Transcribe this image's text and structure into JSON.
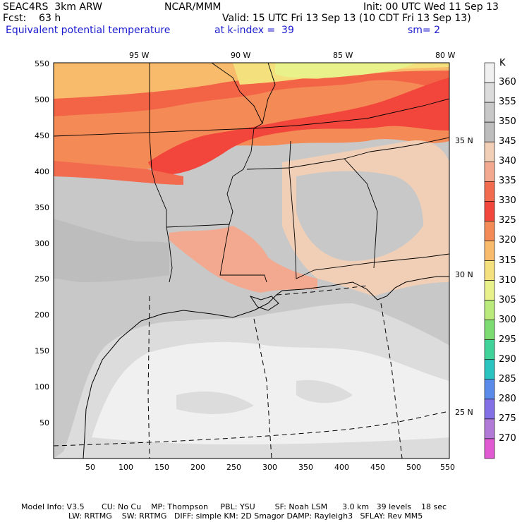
{
  "header": {
    "model": "SEAC4RS  3km ARW",
    "org": "NCAR/MMM",
    "init": "Init: 00 UTC Wed 11 Sep 13",
    "fcst": "Fcst:    63 h",
    "valid": "Valid: 15 UTC Fri 13 Sep 13 (10 CDT Fri 13 Sep 13)",
    "field": "Equivalent potential temperature",
    "level": "at k-index =  39",
    "smoothing": "sm= 2"
  },
  "map": {
    "top_lon_labels": [
      "95 W",
      "90 W",
      "85 W",
      "80 W"
    ],
    "right_lat_labels": [
      "35 N",
      "30 N",
      "25 N"
    ],
    "y_ticks": [
      "550",
      "500",
      "450",
      "400",
      "350",
      "300",
      "250",
      "200",
      "150",
      "100",
      "50"
    ],
    "x_ticks": [
      "50",
      "100",
      "150",
      "200",
      "250",
      "300",
      "350",
      "400",
      "450",
      "500",
      "550"
    ]
  },
  "colorbar": {
    "unit": "K",
    "levels": [
      {
        "label": "360",
        "color": "#f0f0f0"
      },
      {
        "label": "355",
        "color": "#dcdcdc"
      },
      {
        "label": "350",
        "color": "#c8c8c8"
      },
      {
        "label": "345",
        "color": "#bdbdbd"
      },
      {
        "label": "340",
        "color": "#f1cfb6"
      },
      {
        "label": "335",
        "color": "#f2a98f"
      },
      {
        "label": "330",
        "color": "#f26b4f"
      },
      {
        "label": "325",
        "color": "#f2453c"
      },
      {
        "label": "320",
        "color": "#f48a55"
      },
      {
        "label": "315",
        "color": "#f7bb6b"
      },
      {
        "label": "310",
        "color": "#f4e07c"
      },
      {
        "label": "305",
        "color": "#e9f18a"
      },
      {
        "label": "300",
        "color": "#b9ea7b"
      },
      {
        "label": "295",
        "color": "#7cdc72"
      },
      {
        "label": "290",
        "color": "#3fd39a"
      },
      {
        "label": "285",
        "color": "#29c4c0"
      },
      {
        "label": "280",
        "color": "#5b8bea"
      },
      {
        "label": "275",
        "color": "#8470e6"
      },
      {
        "label": "270",
        "color": "#b07ad6"
      },
      {
        "label": "",
        "color": "#e15ad2"
      }
    ]
  },
  "footer": {
    "line1": "Model Info: V3.5       CU: No Cu    MP: Thompson     PBL: YSU        SF: Noah LSM      3.0 km   39 levels    18 sec",
    "line2": "LW: RRTMG    SW: RRTMG   DIFF: simple KM: 2D Smagor DAMP: Rayleigh3   SFLAY: Rev MM5"
  }
}
